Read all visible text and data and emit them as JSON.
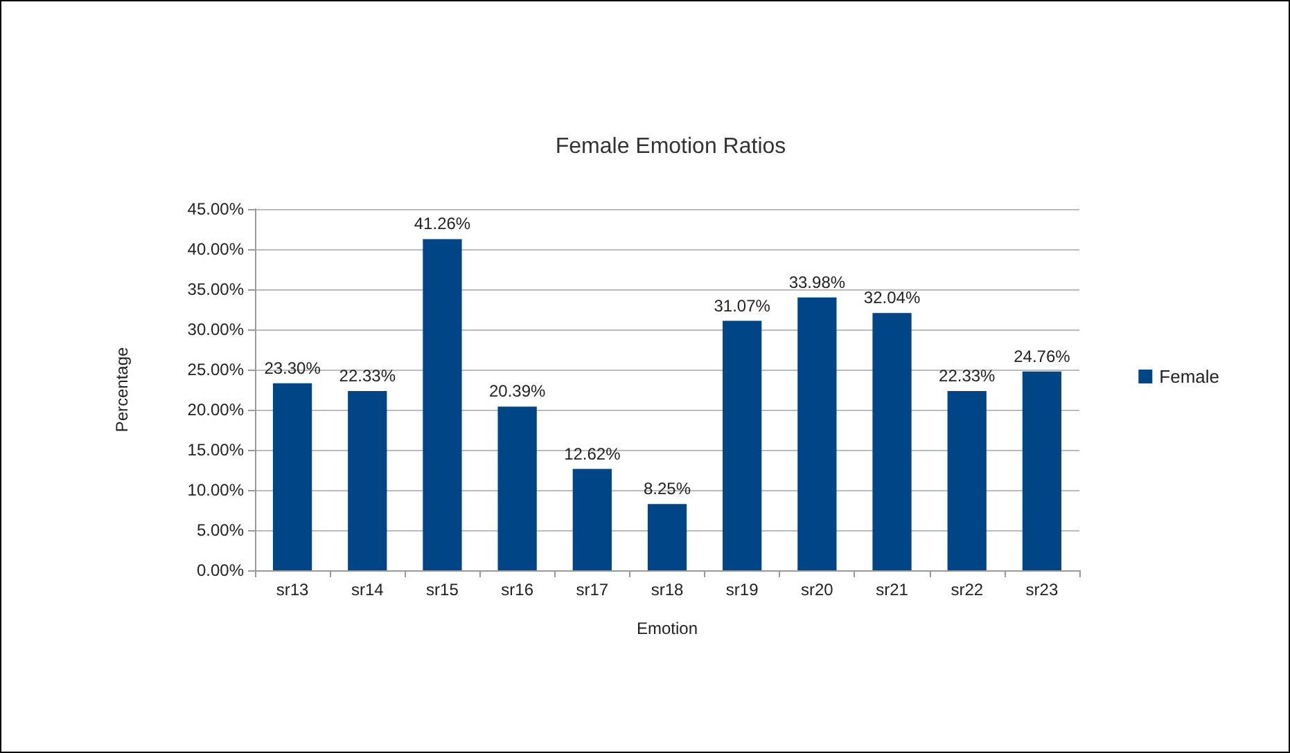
{
  "chart_data": {
    "type": "bar",
    "title": "Female Emotion Ratios",
    "xlabel": "Emotion",
    "ylabel": "Percentage",
    "categories": [
      "sr13",
      "sr14",
      "sr15",
      "sr16",
      "sr17",
      "sr18",
      "sr19",
      "sr20",
      "sr21",
      "sr22",
      "sr23"
    ],
    "series": [
      {
        "name": "Female",
        "color": "#004586",
        "values": [
          23.3,
          22.33,
          41.26,
          20.39,
          12.62,
          8.25,
          31.07,
          33.98,
          32.04,
          22.33,
          24.76
        ],
        "value_labels": [
          "23.30%",
          "22.33%",
          "41.26%",
          "20.39%",
          "12.62%",
          "8.25%",
          "31.07%",
          "33.98%",
          "32.04%",
          "22.33%",
          "24.76%"
        ]
      }
    ],
    "ylim": [
      0,
      45
    ],
    "yticks": [
      {
        "value": 0,
        "label": "0.00%"
      },
      {
        "value": 5,
        "label": "5.00%"
      },
      {
        "value": 10,
        "label": "10.00%"
      },
      {
        "value": 15,
        "label": "15.00%"
      },
      {
        "value": 20,
        "label": "20.00%"
      },
      {
        "value": 25,
        "label": "25.00%"
      },
      {
        "value": 30,
        "label": "30.00%"
      },
      {
        "value": 35,
        "label": "35.00%"
      },
      {
        "value": 40,
        "label": "40.00%"
      },
      {
        "value": 45,
        "label": "45.00%"
      }
    ],
    "grid": "y",
    "legend": "right"
  }
}
